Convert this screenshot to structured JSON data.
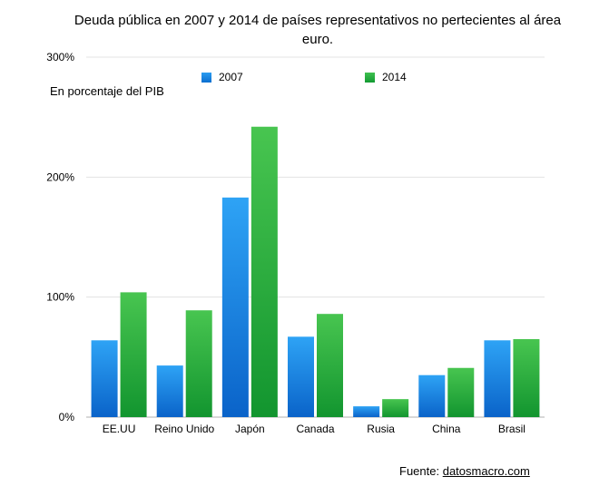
{
  "chart_data": {
    "type": "bar",
    "title": "Deuda pública en 2007 y 2014 de países representativos no pertecientes al área euro.",
    "subtitle": "En porcentaje del PIB",
    "categories": [
      "EE.UU",
      "Reino Unido",
      "Japón",
      "Canada",
      "Rusia",
      "China",
      "Brasil"
    ],
    "series": [
      {
        "name": "2007",
        "values": [
          64,
          43,
          183,
          67,
          9,
          35,
          64
        ],
        "color": "#1a86e8"
      },
      {
        "name": "2014",
        "values": [
          104,
          89,
          242,
          86,
          15,
          41,
          65
        ],
        "color": "#2db34a"
      }
    ],
    "ylim": [
      0,
      300
    ],
    "yticks": [
      0,
      100,
      200,
      300
    ],
    "ytick_labels": [
      "0%",
      "100%",
      "200%",
      "300%"
    ],
    "grid": true,
    "legend_position": "top-center"
  },
  "source": {
    "label": "Fuente:",
    "link": "datosmacro.com"
  }
}
